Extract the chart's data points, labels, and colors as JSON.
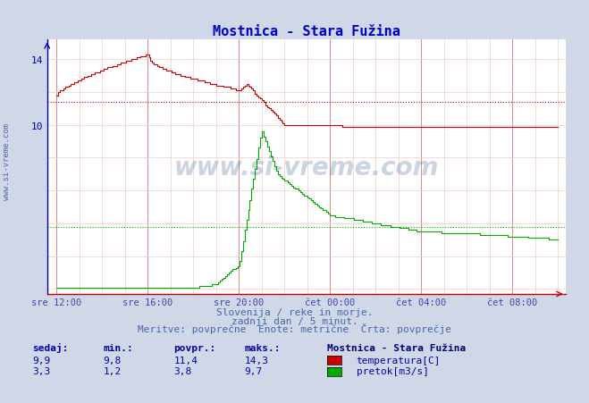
{
  "title": "Mostnica - Stara Fužina",
  "title_color": "#0000cc",
  "bg_color": "#d0d8e8",
  "plot_bg_color": "#ffffff",
  "x_label_color": "#4444aa",
  "y_label_color": "#0000bb",
  "grid_color_major": "#dd8888",
  "grid_color_minor": "#f0cccc",
  "x_ticks": [
    0,
    48,
    96,
    144,
    192,
    240
  ],
  "x_tick_labels": [
    "sre 12:00",
    "sre 16:00",
    "sre 20:00",
    "čet 00:00",
    "čet 04:00",
    "čet 08:00"
  ],
  "y_ticks": [
    10,
    14
  ],
  "y_lim": [
    -0.3,
    15.2
  ],
  "x_lim": [
    -5,
    268
  ],
  "temp_avg": 11.4,
  "flow_avg": 3.8,
  "temp_color": "#cc0000",
  "flow_color": "#00aa00",
  "temp_avg_color": "#cc0000",
  "flow_avg_color": "#00aa00",
  "watermark": "www.si-vreme.com",
  "footer_line1": "Slovenija / reke in morje.",
  "footer_line2": "zadnji dan / 5 minut.",
  "footer_line3": "Meritve: povprečne  Enote: metrične  Črta: povprečje",
  "footer_color": "#4466aa",
  "legend_title": "Mostnica - Stara Fužina",
  "legend_title_color": "#000077",
  "table_headers": [
    "sedaj:",
    "min.:",
    "povpr.:",
    "maks.:"
  ],
  "table_temp": [
    "9,9",
    "9,8",
    "11,4",
    "14,3"
  ],
  "table_flow": [
    "3,3",
    "1,2",
    "3,8",
    "9,7"
  ],
  "table_color": "#0000aa",
  "n_points": 289
}
